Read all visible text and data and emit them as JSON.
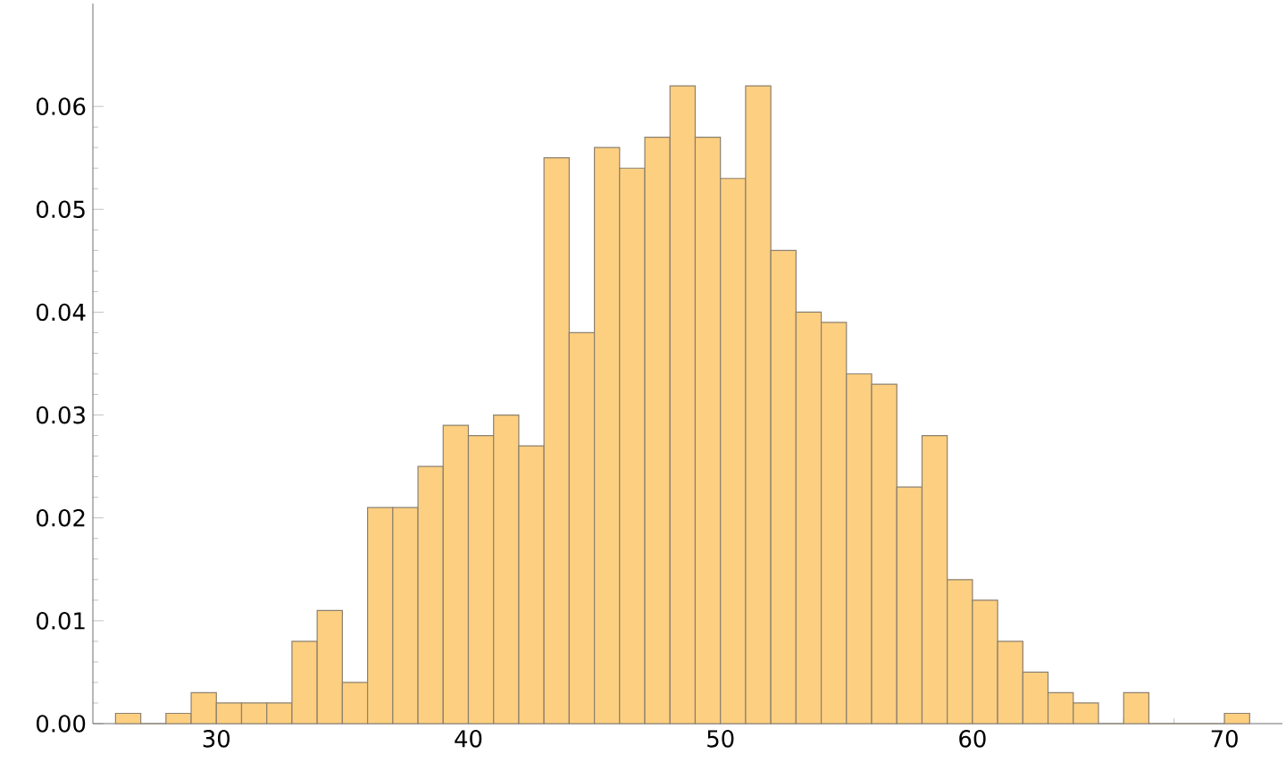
{
  "chart_data": {
    "type": "histogram",
    "bins": [
      26,
      27,
      28,
      29,
      30,
      31,
      32,
      33,
      34,
      35,
      36,
      37,
      38,
      39,
      40,
      41,
      42,
      43,
      44,
      45,
      46,
      47,
      48,
      49,
      50,
      51,
      52,
      53,
      54,
      55,
      56,
      57,
      58,
      59,
      60,
      61,
      62,
      63,
      64,
      65,
      66,
      67,
      68,
      69,
      70,
      71
    ],
    "values": [
      0.001,
      0,
      0.001,
      0.003,
      0.002,
      0.002,
      0.002,
      0.008,
      0.011,
      0.004,
      0.021,
      0.021,
      0.025,
      0.029,
      0.028,
      0.03,
      0.027,
      0.055,
      0.038,
      0.056,
      0.054,
      0.057,
      0.062,
      0.057,
      0.053,
      0.062,
      0.046,
      0.04,
      0.039,
      0.034,
      0.033,
      0.023,
      0.028,
      0.014,
      0.012,
      0.008,
      0.005,
      0.003,
      0.002,
      0,
      0.003,
      0,
      0,
      0,
      0.001
    ],
    "color": "#fdcf80",
    "xlim": [
      25.1,
      72.3
    ],
    "ylim": [
      0,
      0.07
    ],
    "xticks": [
      30,
      40,
      50,
      60,
      70
    ],
    "yticks": [
      {
        "value": 0,
        "label": "0.00"
      },
      {
        "value": 0.01,
        "label": "0.01"
      },
      {
        "value": 0.02,
        "label": "0.02"
      },
      {
        "value": 0.03,
        "label": "0.03"
      },
      {
        "value": 0.04,
        "label": "0.04"
      },
      {
        "value": 0.05,
        "label": "0.05"
      },
      {
        "value": 0.06,
        "label": "0.06"
      }
    ]
  }
}
